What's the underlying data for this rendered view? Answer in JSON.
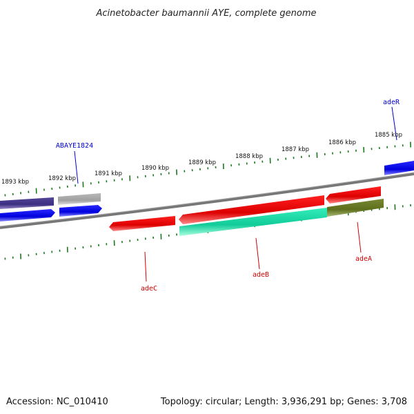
{
  "title": "Acinetobacter baumannii AYE, complete genome",
  "footer": {
    "accession": "Accession: NC_010410",
    "summary": "Topology: circular; Length: 3,936,291 bp; Genes: 3,708"
  },
  "ticks": [
    {
      "label": "1893 kbp"
    },
    {
      "label": "1892 kbp"
    },
    {
      "label": "1891 kbp"
    },
    {
      "label": "1890 kbp"
    },
    {
      "label": "1889 kbp"
    },
    {
      "label": "1888 kbp"
    },
    {
      "label": "1887 kbp"
    },
    {
      "label": "1886 kbp"
    },
    {
      "label": "1885 kbp"
    }
  ],
  "gene_labels": [
    {
      "name": "ABAYE1824",
      "color": "#0000cc"
    },
    {
      "name": "adeR",
      "color": "#0000cc"
    },
    {
      "name": "adeC",
      "color": "#cc0000"
    },
    {
      "name": "adeB",
      "color": "#cc0000"
    },
    {
      "name": "adeA",
      "color": "#cc0000"
    }
  ],
  "colors": {
    "backbone": "#777777",
    "tick_ring": "#1a7a1a",
    "forward_blue": "#0000ee",
    "forward_dark": "#443388",
    "gray_feature": "#aaaaaa",
    "red_feature": "#ee0000",
    "cyan_feature": "#22ddaa",
    "olive_feature": "#667722"
  }
}
